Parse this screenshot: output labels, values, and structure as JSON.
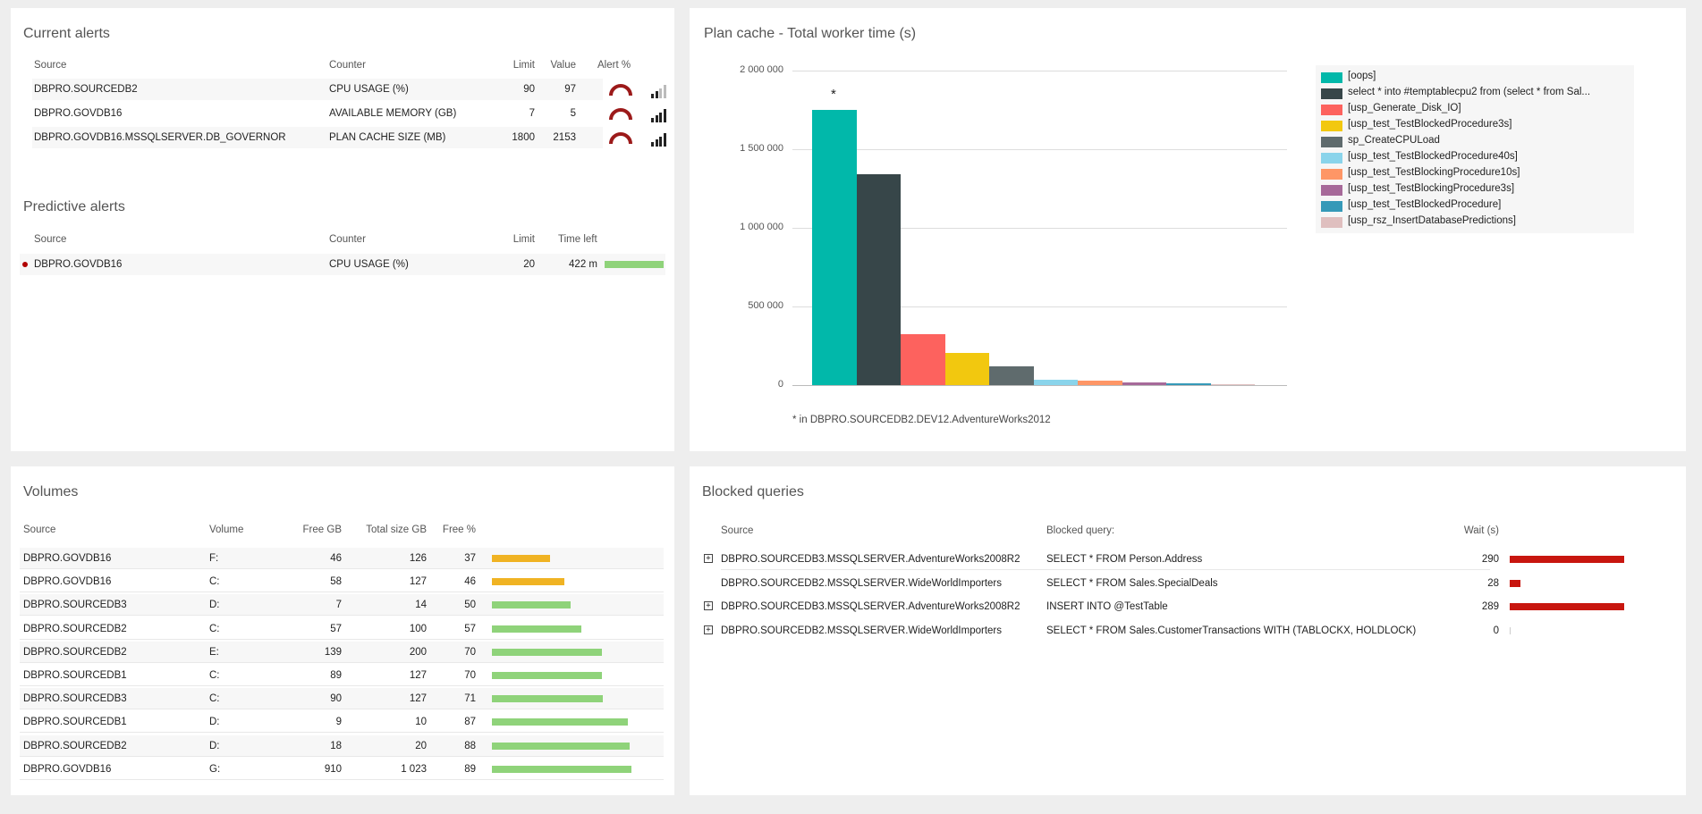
{
  "current_alerts": {
    "title": "Current alerts",
    "headers": {
      "source": "Source",
      "counter": "Counter",
      "limit": "Limit",
      "value": "Value",
      "alert": "Alert %"
    },
    "rows": [
      {
        "source": "DBPRO.SOURCEDB2",
        "counter": "CPU USAGE (%)",
        "limit": "90",
        "value": "97",
        "signal": 2
      },
      {
        "source": "DBPRO.GOVDB16",
        "counter": "AVAILABLE MEMORY (GB)",
        "limit": "7",
        "value": "5",
        "signal": 4
      },
      {
        "source": "DBPRO.GOVDB16.MSSQLSERVER.DB_GOVERNOR",
        "counter": "PLAN CACHE SIZE (MB)",
        "limit": "1800",
        "value": "2153",
        "signal": 4
      }
    ]
  },
  "predictive_alerts": {
    "title": "Predictive alerts",
    "headers": {
      "source": "Source",
      "counter": "Counter",
      "limit": "Limit",
      "time_left": "Time left"
    },
    "rows": [
      {
        "source": "DBPRO.GOVDB16",
        "counter": "CPU USAGE (%)",
        "limit": "20",
        "time_left": "422 m"
      }
    ]
  },
  "plan_cache": {
    "title": "Plan cache - Total worker time (s)",
    "footnote": "* in DBPRO.SOURCEDB2.DEV12.AdventureWorks2012",
    "star": "*",
    "yticks": [
      "2 000 000",
      "1 500 000",
      "1 000 000",
      "500 000",
      "0"
    ]
  },
  "chart_data": {
    "type": "bar",
    "title": "Plan cache - Total worker time (s)",
    "categories": [
      "[oops]",
      "select * into #temptablecpu2   from    (select * from Sal...",
      "[usp_Generate_Disk_IO]",
      "[usp_test_TestBlockedProcedure3s]",
      "sp_CreateCPULoad",
      "[usp_test_TestBlockedProcedure40s]",
      "[usp_test_TestBlockingProcedure10s]",
      "[usp_test_TestBlockingProcedure3s]",
      "[usp_test_TestBlockedProcedure]",
      "[usp_rsz_InsertDatabasePredictions]"
    ],
    "values": [
      1750000,
      1340000,
      325000,
      205000,
      120000,
      35000,
      28000,
      18000,
      10000,
      5000
    ],
    "colors": [
      "#01b8aa",
      "#374649",
      "#fd625e",
      "#f2c80f",
      "#5f6b6d",
      "#8ad4eb",
      "#fe9666",
      "#a66999",
      "#3599b8",
      "#dfbfbf"
    ],
    "ylim": [
      0,
      2000000
    ],
    "legend_position": "right",
    "grid": true
  },
  "volumes": {
    "title": "Volumes",
    "headers": {
      "source": "Source",
      "volume": "Volume",
      "free_gb": "Free GB",
      "total": "Total size GB",
      "free_pct": "Free %"
    },
    "rows": [
      {
        "source": "DBPRO.GOVDB16",
        "volume": "F:",
        "free_gb": "46",
        "total": "126",
        "free_pct": "37",
        "pct": 37,
        "color": "#f0b323"
      },
      {
        "source": "DBPRO.GOVDB16",
        "volume": "C:",
        "free_gb": "58",
        "total": "127",
        "free_pct": "46",
        "pct": 46,
        "color": "#f0b323"
      },
      {
        "source": "DBPRO.SOURCEDB3",
        "volume": "D:",
        "free_gb": "7",
        "total": "14",
        "free_pct": "50",
        "pct": 50,
        "color": "#8fd37a"
      },
      {
        "source": "DBPRO.SOURCEDB2",
        "volume": "C:",
        "free_gb": "57",
        "total": "100",
        "free_pct": "57",
        "pct": 57,
        "color": "#8fd37a"
      },
      {
        "source": "DBPRO.SOURCEDB2",
        "volume": "E:",
        "free_gb": "139",
        "total": "200",
        "free_pct": "70",
        "pct": 70,
        "color": "#8fd37a"
      },
      {
        "source": "DBPRO.SOURCEDB1",
        "volume": "C:",
        "free_gb": "89",
        "total": "127",
        "free_pct": "70",
        "pct": 70,
        "color": "#8fd37a"
      },
      {
        "source": "DBPRO.SOURCEDB3",
        "volume": "C:",
        "free_gb": "90",
        "total": "127",
        "free_pct": "71",
        "pct": 71,
        "color": "#8fd37a"
      },
      {
        "source": "DBPRO.SOURCEDB1",
        "volume": "D:",
        "free_gb": "9",
        "total": "10",
        "free_pct": "87",
        "pct": 87,
        "color": "#8fd37a"
      },
      {
        "source": "DBPRO.SOURCEDB2",
        "volume": "D:",
        "free_gb": "18",
        "total": "20",
        "free_pct": "88",
        "pct": 88,
        "color": "#8fd37a"
      },
      {
        "source": "DBPRO.GOVDB16",
        "volume": "G:",
        "free_gb": "910",
        "total": "1 023",
        "free_pct": "89",
        "pct": 89,
        "color": "#8fd37a"
      }
    ]
  },
  "blocked_queries": {
    "title": "Blocked queries",
    "headers": {
      "source": "Source",
      "query": "Blocked query:",
      "wait": "Wait (s)"
    },
    "expand_symbol": "+",
    "rows": [
      {
        "source": "DBPRO.SOURCEDB3.MSSQLSERVER.AdventureWorks2008R2",
        "query": "SELECT * FROM Person.Address",
        "wait": "290",
        "wait_value": 290,
        "expandable": true
      },
      {
        "source": "DBPRO.SOURCEDB2.MSSQLSERVER.WideWorldImporters",
        "query": "SELECT * FROM Sales.SpecialDeals",
        "wait": "28",
        "wait_value": 28,
        "expandable": false
      },
      {
        "source": "DBPRO.SOURCEDB3.MSSQLSERVER.AdventureWorks2008R2",
        "query": "INSERT INTO @TestTable",
        "wait": "289",
        "wait_value": 289,
        "expandable": true
      },
      {
        "source": "DBPRO.SOURCEDB2.MSSQLSERVER.WideWorldImporters",
        "query": "SELECT * FROM Sales.CustomerTransactions WITH (TABLOCKX, HOLDLOCK)",
        "wait": "0",
        "wait_value": 0,
        "expandable": true
      }
    ]
  }
}
